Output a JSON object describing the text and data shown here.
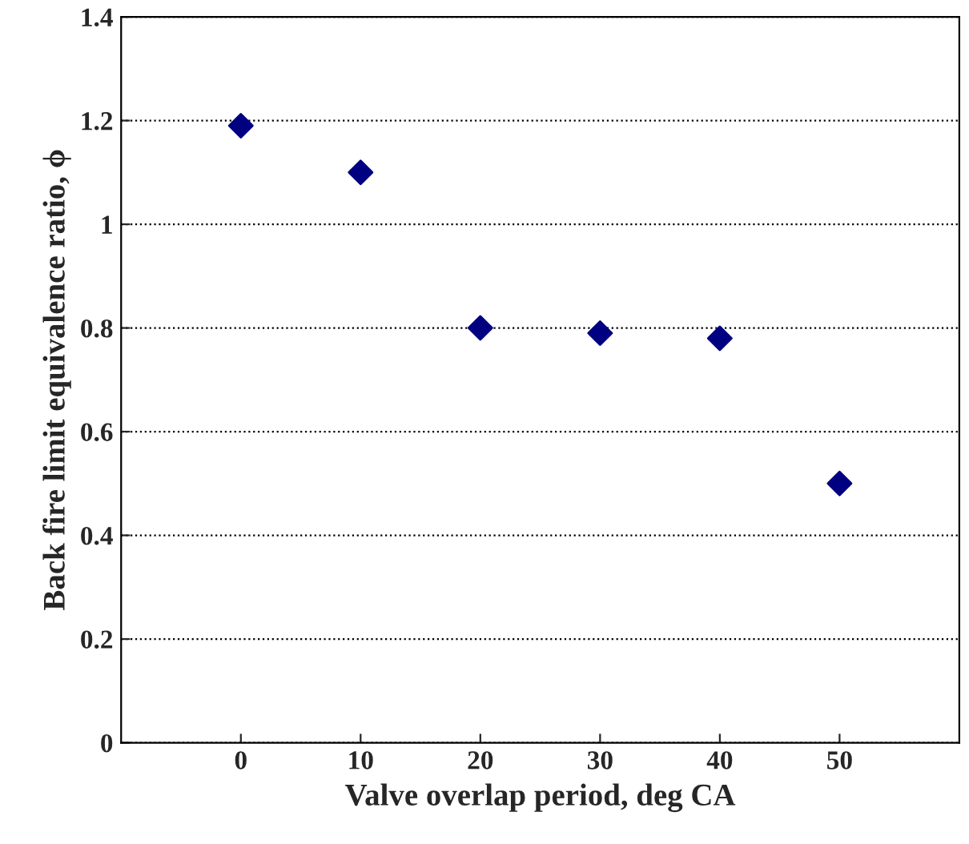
{
  "chart_data": {
    "type": "scatter",
    "xlabel": "Valve overlap period, deg CA",
    "ylabel": "Back fire limit equivalence ratio, ϕ",
    "x": [
      0,
      10,
      20,
      30,
      40,
      50
    ],
    "series": [
      {
        "color": "#000080",
        "values": [
          1.19,
          1.1,
          0.8,
          0.79,
          0.78,
          0.5
        ]
      }
    ],
    "xlim": [
      -10,
      60
    ],
    "xticks": [
      0,
      10,
      20,
      30,
      40,
      50
    ],
    "ylim": [
      0,
      1.4
    ],
    "yticks": [
      0,
      0.2,
      0.4,
      0.6,
      0.8,
      1,
      1.2,
      1.4
    ],
    "grid": "y",
    "marker": "diamond",
    "legend": false
  }
}
